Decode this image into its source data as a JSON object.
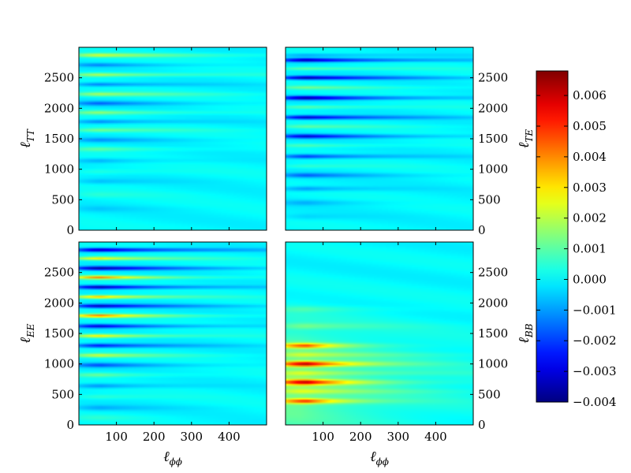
{
  "chart_data": {
    "type": "heatmap",
    "colormap": "jet",
    "colorbar": {
      "range": [
        -0.004,
        0.0068
      ],
      "ticks": [
        -0.004,
        -0.003,
        -0.002,
        -0.001,
        0.0,
        0.001,
        0.002,
        0.003,
        0.004,
        0.005,
        0.006
      ],
      "tick_labels": [
        "−0.004",
        "−0.003",
        "−0.002",
        "−0.001",
        "0.000",
        "0.001",
        "0.002",
        "0.003",
        "0.004",
        "0.005",
        "0.006"
      ],
      "placement": "right"
    },
    "x_axis": {
      "label_main": "ℓ",
      "label_sub": "ϕϕ",
      "range": [
        0,
        500
      ],
      "ticks": [
        100,
        200,
        300,
        400
      ],
      "tick_labels": [
        "100",
        "200",
        "300",
        "400"
      ]
    },
    "y_axis": {
      "range": [
        0,
        3000
      ],
      "ticks": [
        0,
        500,
        1000,
        1500,
        2000,
        2500
      ],
      "tick_labels": [
        "0",
        "500",
        "1000",
        "1500",
        "2000",
        "2500"
      ]
    },
    "panels": [
      {
        "id": "TT",
        "ylabel_main": "ℓ",
        "ylabel_sub": "TT",
        "ylabel_side": "left",
        "bands": [
          {
            "y": 2870,
            "amp": 0.0022,
            "w": 32,
            "decay": 230
          },
          {
            "y": 2710,
            "amp": -0.0012,
            "w": 30,
            "decay": 200
          },
          {
            "y": 2550,
            "amp": 0.002,
            "w": 32,
            "decay": 220
          },
          {
            "y": 2390,
            "amp": -0.0014,
            "w": 32,
            "decay": 200
          },
          {
            "y": 2230,
            "amp": 0.0018,
            "w": 34,
            "decay": 210
          },
          {
            "y": 2080,
            "amp": -0.0015,
            "w": 34,
            "decay": 200
          },
          {
            "y": 1930,
            "amp": 0.0016,
            "w": 34,
            "decay": 200
          },
          {
            "y": 1780,
            "amp": -0.0013,
            "w": 34,
            "decay": 190
          },
          {
            "y": 1640,
            "amp": 0.0013,
            "w": 34,
            "decay": 190
          },
          {
            "y": 1480,
            "amp": -0.001,
            "w": 36,
            "decay": 180
          },
          {
            "y": 1330,
            "amp": 0.001,
            "w": 36,
            "decay": 170
          },
          {
            "y": 1140,
            "amp": -0.0008,
            "w": 40,
            "decay": 160
          },
          {
            "y": 960,
            "amp": 0.0005,
            "w": 44,
            "decay": 150
          },
          {
            "y": 800,
            "amp": -0.0006,
            "w": 44,
            "decay": 140
          },
          {
            "y": 580,
            "amp": 0.0004,
            "w": 50,
            "decay": 130
          },
          {
            "y": 350,
            "amp": -0.0004,
            "w": 50,
            "decay": 120
          }
        ]
      },
      {
        "id": "TE",
        "ylabel_main": "ℓ",
        "ylabel_sub": "TE",
        "ylabel_side": "right",
        "bands": [
          {
            "y": 2870,
            "amp": -0.001,
            "w": 28,
            "decay": 300
          },
          {
            "y": 2790,
            "amp": -0.0036,
            "w": 30,
            "decay": 260
          },
          {
            "y": 2650,
            "amp": 0.0012,
            "w": 28,
            "decay": 220
          },
          {
            "y": 2500,
            "amp": -0.0036,
            "w": 30,
            "decay": 250
          },
          {
            "y": 2340,
            "amp": 0.0012,
            "w": 28,
            "decay": 220
          },
          {
            "y": 2170,
            "amp": -0.0037,
            "w": 32,
            "decay": 240
          },
          {
            "y": 2020,
            "amp": 0.0011,
            "w": 30,
            "decay": 210
          },
          {
            "y": 1850,
            "amp": -0.0033,
            "w": 32,
            "decay": 230
          },
          {
            "y": 1700,
            "amp": 0.001,
            "w": 30,
            "decay": 200
          },
          {
            "y": 1540,
            "amp": -0.003,
            "w": 32,
            "decay": 220
          },
          {
            "y": 1390,
            "amp": 0.0009,
            "w": 30,
            "decay": 190
          },
          {
            "y": 1210,
            "amp": -0.0022,
            "w": 34,
            "decay": 200
          },
          {
            "y": 1050,
            "amp": 0.0006,
            "w": 34,
            "decay": 170
          },
          {
            "y": 900,
            "amp": -0.0016,
            "w": 36,
            "decay": 180
          },
          {
            "y": 680,
            "amp": -0.0011,
            "w": 40,
            "decay": 160
          },
          {
            "y": 450,
            "amp": -0.0007,
            "w": 44,
            "decay": 140
          },
          {
            "y": 220,
            "amp": -0.0004,
            "w": 50,
            "decay": 120
          }
        ]
      },
      {
        "id": "EE",
        "ylabel_main": "ℓ",
        "ylabel_sub": "EE",
        "ylabel_side": "left",
        "bands": [
          {
            "y": 2870,
            "amp": -0.0036,
            "w": 30,
            "decay": 260
          },
          {
            "y": 2730,
            "amp": 0.003,
            "w": 28,
            "decay": 160
          },
          {
            "y": 2570,
            "amp": -0.0036,
            "w": 30,
            "decay": 230
          },
          {
            "y": 2420,
            "amp": 0.004,
            "w": 28,
            "decay": 160
          },
          {
            "y": 2260,
            "amp": -0.0035,
            "w": 30,
            "decay": 220
          },
          {
            "y": 2100,
            "amp": 0.0036,
            "w": 28,
            "decay": 150
          },
          {
            "y": 1950,
            "amp": -0.0033,
            "w": 30,
            "decay": 210
          },
          {
            "y": 1790,
            "amp": 0.0042,
            "w": 28,
            "decay": 150
          },
          {
            "y": 1620,
            "amp": -0.003,
            "w": 30,
            "decay": 200
          },
          {
            "y": 1460,
            "amp": 0.003,
            "w": 30,
            "decay": 150
          },
          {
            "y": 1300,
            "amp": -0.0026,
            "w": 32,
            "decay": 190
          },
          {
            "y": 1140,
            "amp": 0.0022,
            "w": 32,
            "decay": 150
          },
          {
            "y": 980,
            "amp": -0.0018,
            "w": 34,
            "decay": 180
          },
          {
            "y": 820,
            "amp": 0.0012,
            "w": 36,
            "decay": 140
          },
          {
            "y": 640,
            "amp": -0.0012,
            "w": 38,
            "decay": 160
          },
          {
            "y": 460,
            "amp": 0.0006,
            "w": 40,
            "decay": 130
          },
          {
            "y": 280,
            "amp": -0.0008,
            "w": 44,
            "decay": 140
          },
          {
            "y": 120,
            "amp": 0.0004,
            "w": 44,
            "decay": 120
          }
        ]
      },
      {
        "id": "BB",
        "ylabel_main": "ℓ",
        "ylabel_sub": "BB",
        "ylabel_side": "right",
        "background": {
          "amp": 0.0014,
          "y_center": 700,
          "y_width": 900,
          "x_decay": 260
        },
        "bands": [
          {
            "y": 1900,
            "amp": 0.0006,
            "w": 50,
            "decay": 160
          },
          {
            "y": 1620,
            "amp": 0.0009,
            "w": 50,
            "decay": 160
          },
          {
            "y": 1300,
            "amp": 0.0038,
            "w": 40,
            "decay": 90
          },
          {
            "y": 1000,
            "amp": 0.0052,
            "w": 42,
            "decay": 120
          },
          {
            "y": 700,
            "amp": 0.0048,
            "w": 42,
            "decay": 120
          },
          {
            "y": 390,
            "amp": 0.004,
            "w": 40,
            "decay": 100
          },
          {
            "y": 1150,
            "amp": 0.0012,
            "w": 40,
            "decay": 220
          },
          {
            "y": 850,
            "amp": 0.0012,
            "w": 40,
            "decay": 220
          },
          {
            "y": 550,
            "amp": 0.0012,
            "w": 40,
            "decay": 220
          }
        ]
      }
    ]
  }
}
